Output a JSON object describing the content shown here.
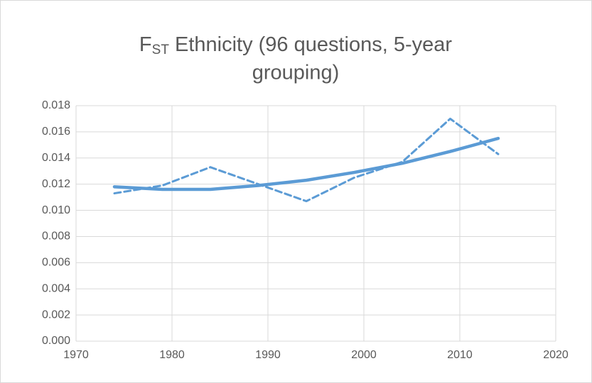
{
  "chart_data": {
    "type": "line",
    "title": {
      "letter": "F",
      "subscript": "ST",
      "line1": "Ethnicity (96 questions, 5-year",
      "line2": "grouping)"
    },
    "x": [
      1974,
      1979,
      1984,
      1989,
      1994,
      1999,
      2004,
      2009,
      2014
    ],
    "series": [
      {
        "color": "#5b9bd5",
        "dashed": true,
        "values": [
          0.0113,
          0.0119,
          0.0133,
          0.012,
          0.0107,
          0.0125,
          0.0137,
          0.017,
          0.0143
        ]
      },
      {
        "color": "#5b9bd5",
        "dashed": false,
        "values": [
          0.0118,
          0.0116,
          0.0116,
          0.0119,
          0.0123,
          0.0129,
          0.0136,
          0.0145,
          0.0155
        ]
      }
    ],
    "xlim": [
      1970,
      2020
    ],
    "xticks": [
      1970,
      1980,
      1990,
      2000,
      2010,
      2020
    ],
    "ylim": [
      0,
      0.018
    ],
    "yticks": [
      {
        "value": 0,
        "label": "0.000"
      },
      {
        "value": 0.002,
        "label": "0.002"
      },
      {
        "value": 0.004,
        "label": "0.004"
      },
      {
        "value": 0.006,
        "label": "0.006"
      },
      {
        "value": 0.008,
        "label": "0.008"
      },
      {
        "value": 0.01,
        "label": "0.010"
      },
      {
        "value": 0.012,
        "label": "0.012"
      },
      {
        "value": 0.014,
        "label": "0.014"
      },
      {
        "value": 0.016,
        "label": "0.016"
      },
      {
        "value": 0.018,
        "label": "0.018"
      }
    ],
    "grid": true
  }
}
